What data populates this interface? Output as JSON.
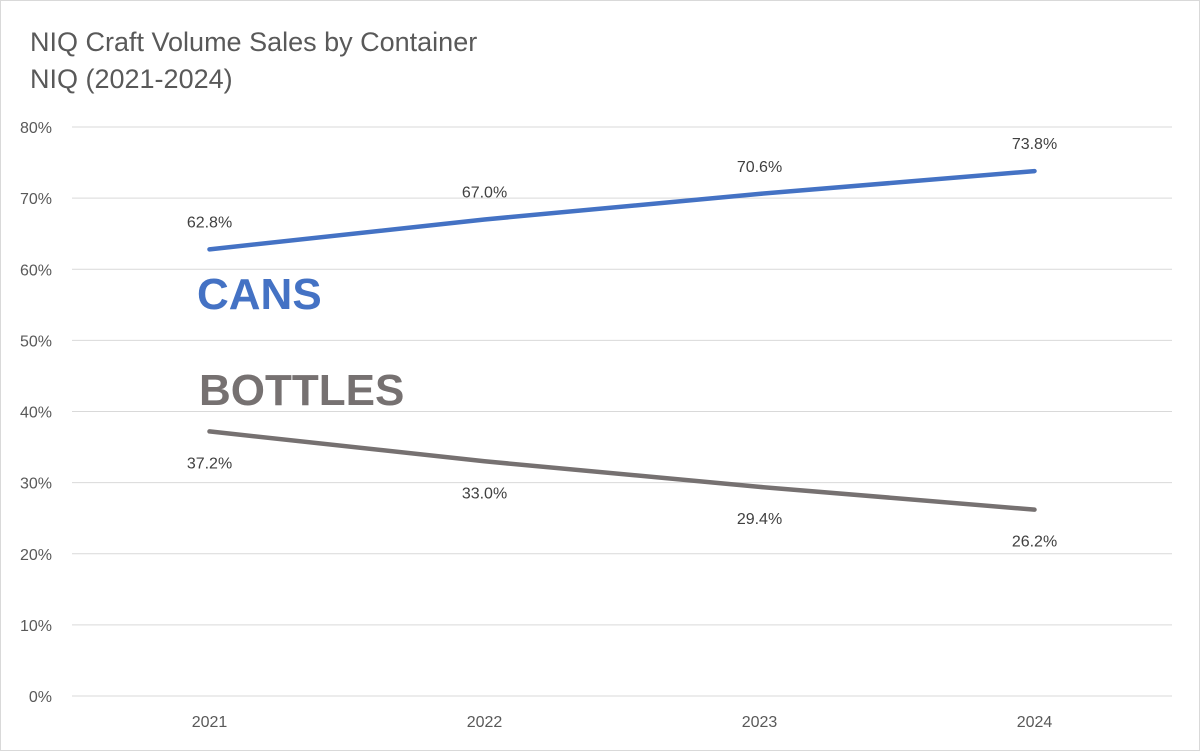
{
  "chart_data": {
    "type": "line",
    "title": "NIQ Craft Volume Sales by Container",
    "subtitle": "NIQ (2021-2024)",
    "categories": [
      "2021",
      "2022",
      "2023",
      "2024"
    ],
    "ylim": [
      0,
      80
    ],
    "yticks": [
      "0%",
      "10%",
      "20%",
      "30%",
      "40%",
      "50%",
      "60%",
      "70%",
      "80%"
    ],
    "y_unit": "percent",
    "grid": true,
    "legend": "none (series labeled inline)",
    "series": [
      {
        "name": "CANS",
        "color": "#4472c4",
        "values": [
          62.8,
          67.0,
          70.6,
          73.8
        ],
        "labels": [
          "62.8%",
          "67.0%",
          "70.6%",
          "73.8%"
        ],
        "label_position": "above"
      },
      {
        "name": "BOTTLES",
        "color": "#767171",
        "values": [
          37.2,
          33.0,
          29.4,
          26.2
        ],
        "labels": [
          "37.2%",
          "33.0%",
          "29.4%",
          "26.2%"
        ],
        "label_position": "below"
      }
    ]
  }
}
